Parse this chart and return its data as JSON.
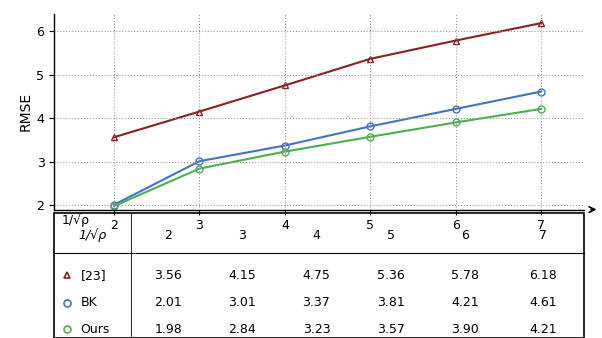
{
  "x_values": [
    2,
    3,
    4,
    5,
    6,
    7
  ],
  "series": [
    {
      "label": "[23]",
      "values": [
        3.56,
        4.15,
        4.75,
        5.36,
        5.78,
        6.18
      ],
      "color": "#8B2020",
      "marker": "^",
      "markersize": 5,
      "linewidth": 1.5
    },
    {
      "label": "BK",
      "values": [
        2.01,
        3.01,
        3.37,
        3.81,
        4.21,
        4.61
      ],
      "color": "#4472C4",
      "marker": "o",
      "markersize": 5,
      "linewidth": 1.5
    },
    {
      "label": "Ours",
      "values": [
        1.98,
        2.84,
        3.23,
        3.57,
        3.9,
        4.21
      ],
      "color": "#4CAF50",
      "marker": "o",
      "markersize": 5,
      "linewidth": 1.5
    }
  ],
  "xlabel": "1/√ρ",
  "ylabel": "RMSE",
  "ylim": [
    1.9,
    6.4
  ],
  "xlim": [
    1.3,
    7.5
  ],
  "yticks": [
    2,
    3,
    4,
    5,
    6
  ],
  "xticks": [
    2,
    3,
    4,
    5,
    6,
    7
  ],
  "grid_color": "#999999",
  "background_color": "#ffffff",
  "table_rows": [
    [
      "[23]",
      "3.56",
      "4.15",
      "4.75",
      "5.36",
      "5.78",
      "6.18"
    ],
    [
      "BK",
      "2.01",
      "3.01",
      "3.37",
      "3.81",
      "4.21",
      "4.61"
    ],
    [
      "Ours",
      "1.98",
      "2.84",
      "3.23",
      "3.57",
      "3.90",
      "4.21"
    ]
  ],
  "table_col_labels": [
    "1/√ρ",
    "2",
    "3",
    "4",
    "5",
    "6",
    "7"
  ],
  "series_colors": [
    "#8B2020",
    "#4472C4",
    "#4CAF50"
  ],
  "series_markers": [
    "^",
    "o",
    "o"
  ]
}
